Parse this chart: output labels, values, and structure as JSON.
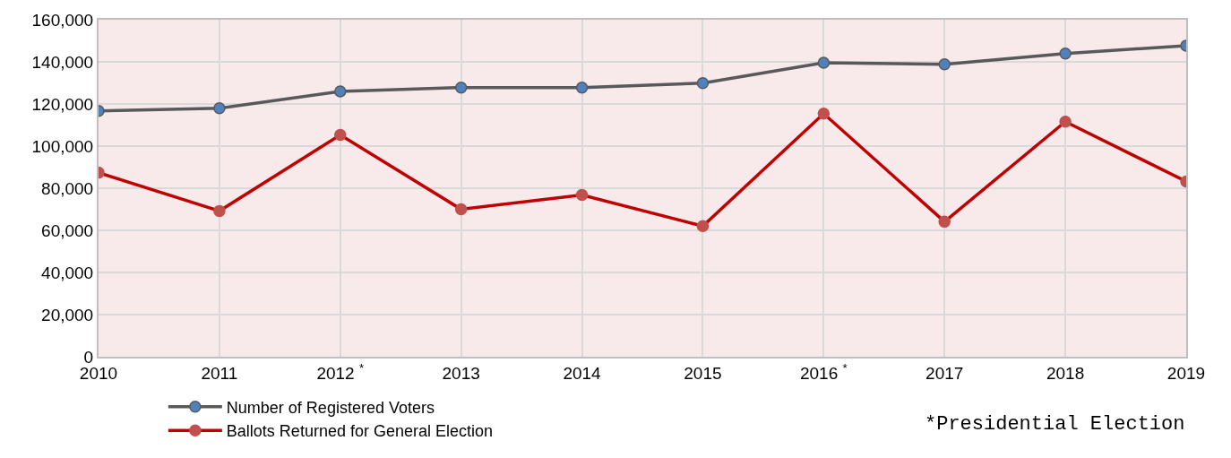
{
  "chart_data": {
    "type": "line",
    "categories": [
      "2010",
      "2011",
      "2012 $^{*}$",
      "2013",
      "2014",
      "2015",
      "2016 $^{*}$",
      "2017",
      "2018",
      "2019"
    ],
    "series": [
      {
        "name": "Number of Registered Voters",
        "color": "#595959",
        "values": [
          116700,
          118000,
          126000,
          127800,
          127800,
          129900,
          139600,
          138800,
          143900,
          147700
        ]
      },
      {
        "name": "Ballots Returned for General Election",
        "color": "#c00000",
        "values": [
          87400,
          69200,
          105300,
          70000,
          76800,
          62000,
          115400,
          64100,
          111600,
          83200
        ]
      }
    ],
    "ylim": [
      0,
      160000
    ],
    "yticks": [
      {
        "value": 0,
        "label": "0"
      },
      {
        "value": 20000,
        "label": "20,000"
      },
      {
        "value": 40000,
        "label": "40,000"
      },
      {
        "value": 60000,
        "label": "60,000"
      },
      {
        "value": 80000,
        "label": "80,000"
      },
      {
        "value": 100000,
        "label": "100,000"
      },
      {
        "value": 120000,
        "label": "120,000"
      },
      {
        "value": 140000,
        "label": "140,000"
      },
      {
        "value": 160000,
        "label": "160,000"
      }
    ],
    "grid": true,
    "legend": "bottom left",
    "marker": "circle",
    "line_style": "solid",
    "annotations": [
      "*Presidential Election"
    ]
  }
}
